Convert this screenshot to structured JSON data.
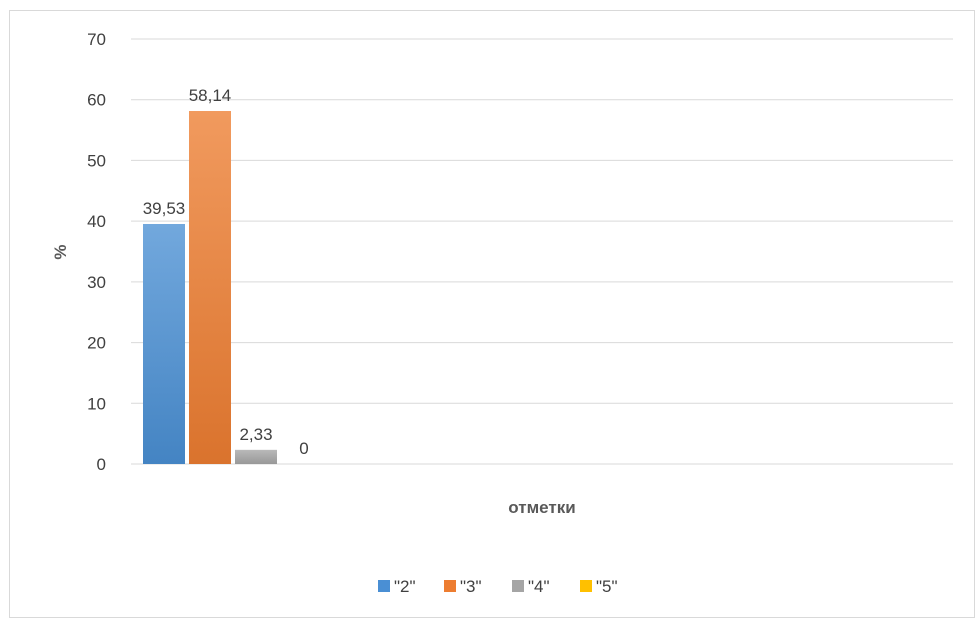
{
  "chart_data": {
    "type": "bar",
    "title": "",
    "xlabel": "отметки",
    "ylabel": "%",
    "ylim": [
      0,
      70
    ],
    "yticks": [
      0,
      10,
      20,
      30,
      40,
      50,
      60,
      70
    ],
    "grid": true,
    "legend_position": "bottom",
    "categories": [
      ""
    ],
    "series": [
      {
        "name": "\"2\"",
        "values": [
          39.53
        ],
        "label": "39,53",
        "color": "#4a8fd4"
      },
      {
        "name": "\"3\"",
        "values": [
          58.14
        ],
        "label": "58,14",
        "color": "#ed7d31"
      },
      {
        "name": "\"4\"",
        "values": [
          2.33
        ],
        "label": "2,33",
        "color": "#a5a5a5"
      },
      {
        "name": "\"5\"",
        "values": [
          0
        ],
        "label": "0",
        "color": "#ffc000"
      }
    ]
  }
}
